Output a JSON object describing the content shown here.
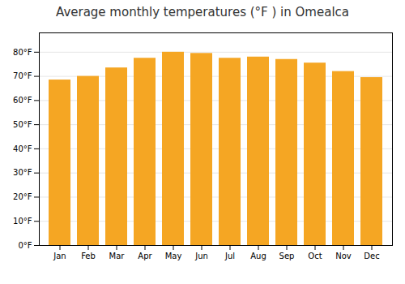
{
  "chart_data": {
    "type": "bar",
    "title": "Average monthly temperatures (°F ) in Omealca",
    "categories": [
      "Jan",
      "Feb",
      "Mar",
      "Apr",
      "May",
      "Jun",
      "Jul",
      "Aug",
      "Sep",
      "Oct",
      "Nov",
      "Dec"
    ],
    "values": [
      68.5,
      70.0,
      73.5,
      77.5,
      80.0,
      79.5,
      77.5,
      78.0,
      77.0,
      75.5,
      72.0,
      69.5
    ],
    "color": "#F5A623",
    "ylim": [
      0,
      88
    ],
    "yticks": [
      {
        "value": 0,
        "label": "0°F"
      },
      {
        "value": 10,
        "label": "10°F"
      },
      {
        "value": 20,
        "label": "20°F"
      },
      {
        "value": 30,
        "label": "30°F"
      },
      {
        "value": 40,
        "label": "40°F"
      },
      {
        "value": 50,
        "label": "50°F"
      },
      {
        "value": 60,
        "label": "60°F"
      },
      {
        "value": 70,
        "label": "70°F"
      },
      {
        "value": 80,
        "label": "80°F"
      }
    ],
    "grid": true
  }
}
